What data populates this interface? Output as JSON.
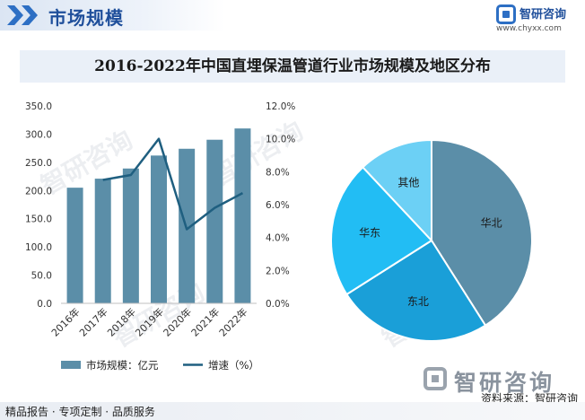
{
  "header": {
    "title": "市场规模"
  },
  "brand": {
    "name": "智研咨询",
    "url": "www.chyxx.com"
  },
  "footer": {
    "logo_text": "智研咨询",
    "source": "资料来源：智研咨询",
    "tagline": "精品报告 · 专项定制 · 品质服务"
  },
  "watermark_text": "智研咨询",
  "chart_title": "2016-2022年中国直埋保温管道行业市场规模及地区分布",
  "colors": {
    "bar": "#5b8ea8",
    "line": "#1f5f80",
    "pie": [
      "#5b8ea8",
      "#1a9fd8",
      "#22bdf4",
      "#6cd0f5"
    ]
  },
  "chart_data": [
    {
      "type": "bar",
      "categories": [
        "2016年",
        "2017年",
        "2018年",
        "2019年",
        "2020年",
        "2021年",
        "2022年"
      ],
      "series": [
        {
          "name": "市场规模：亿元",
          "type": "bar",
          "axis": "left",
          "values": [
            205,
            221,
            239,
            262,
            274,
            290,
            310
          ]
        },
        {
          "name": "增速（%）",
          "type": "line",
          "axis": "right",
          "values": [
            null,
            7.5,
            7.8,
            10.0,
            4.5,
            5.8,
            6.7
          ]
        }
      ],
      "y_left": {
        "min": 0,
        "max": 350,
        "step": 50,
        "ticks": [
          "0.0",
          "50.0",
          "100.0",
          "150.0",
          "200.0",
          "250.0",
          "300.0",
          "350.0"
        ]
      },
      "y_right": {
        "min": 0,
        "max": 12,
        "step": 2,
        "ticks": [
          "0.0%",
          "2.0%",
          "4.0%",
          "6.0%",
          "8.0%",
          "10.0%",
          "12.0%"
        ]
      },
      "legend_position": "bottom"
    },
    {
      "type": "pie",
      "slices": [
        {
          "label": "华北",
          "value": 41
        },
        {
          "label": "东北",
          "value": 25
        },
        {
          "label": "华东",
          "value": 22
        },
        {
          "label": "其他",
          "value": 12
        }
      ]
    }
  ]
}
